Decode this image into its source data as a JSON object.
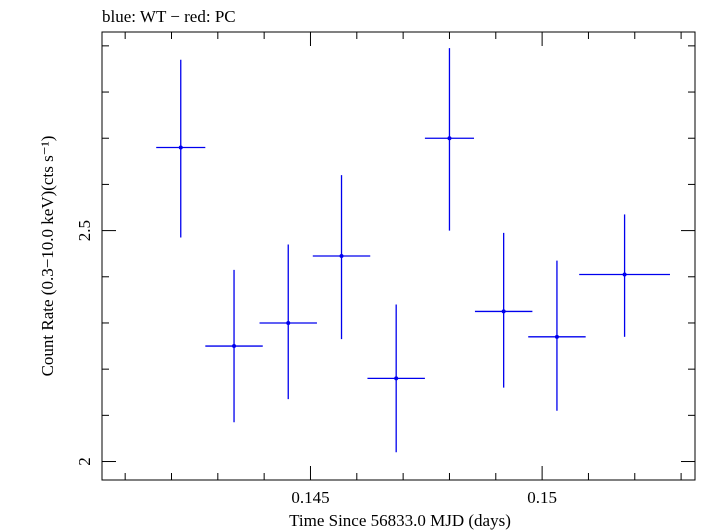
{
  "header": {
    "title": "blue: WT − red: PC"
  },
  "chart_data": {
    "type": "scatter",
    "title": "blue: WT − red: PC",
    "xlabel": "Time Since 56833.0 MJD (days)",
    "ylabel": "Count Rate (0.3−10.0 keV)(cts s⁻¹)",
    "xlim": [
      0.1405,
      0.1533
    ],
    "ylim": [
      1.96,
      2.93
    ],
    "x_ticks": [
      0.145,
      0.15
    ],
    "x_tick_labels": [
      "0.145",
      "0.15"
    ],
    "y_ticks": [
      2,
      2.5
    ],
    "y_tick_labels": [
      "2",
      "2.5"
    ],
    "grid": false,
    "series": [
      {
        "name": "WT",
        "color": "#0000ee",
        "points": [
          {
            "x": 0.1422,
            "xerr": 0.00053,
            "y": 2.68,
            "yerr_lo": 0.195,
            "yerr_hi": 0.19
          },
          {
            "x": 0.14335,
            "xerr": 0.00062,
            "y": 2.25,
            "yerr_lo": 0.165,
            "yerr_hi": 0.165
          },
          {
            "x": 0.14452,
            "xerr": 0.00062,
            "y": 2.3,
            "yerr_lo": 0.165,
            "yerr_hi": 0.17
          },
          {
            "x": 0.14567,
            "xerr": 0.00062,
            "y": 2.445,
            "yerr_lo": 0.18,
            "yerr_hi": 0.175
          },
          {
            "x": 0.14685,
            "xerr": 0.00062,
            "y": 2.18,
            "yerr_lo": 0.16,
            "yerr_hi": 0.16
          },
          {
            "x": 0.148,
            "xerr": 0.00053,
            "y": 2.7,
            "yerr_lo": 0.2,
            "yerr_hi": 0.195
          },
          {
            "x": 0.14917,
            "xerr": 0.00062,
            "y": 2.325,
            "yerr_lo": 0.165,
            "yerr_hi": 0.17
          },
          {
            "x": 0.15032,
            "xerr": 0.00062,
            "y": 2.27,
            "yerr_lo": 0.16,
            "yerr_hi": 0.165
          },
          {
            "x": 0.15178,
            "xerr": 0.00098,
            "y": 2.405,
            "yerr_lo": 0.135,
            "yerr_hi": 0.13
          }
        ]
      }
    ]
  }
}
